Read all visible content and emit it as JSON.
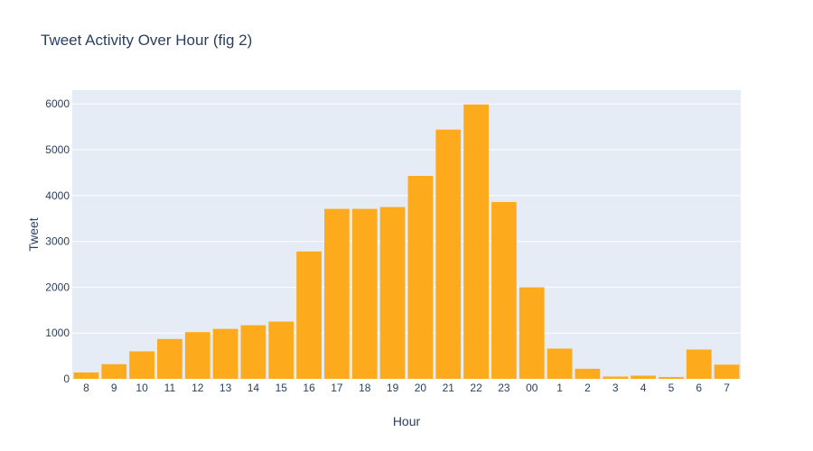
{
  "chart_data": {
    "type": "bar",
    "title": "Tweet Activity Over Hour (fig 2)",
    "xlabel": "Hour",
    "ylabel": "Tweet",
    "categories": [
      "8",
      "9",
      "10",
      "11",
      "12",
      "13",
      "14",
      "15",
      "16",
      "17",
      "18",
      "19",
      "20",
      "21",
      "22",
      "23",
      "00",
      "1",
      "2",
      "3",
      "4",
      "5",
      "6",
      "7"
    ],
    "values": [
      140,
      320,
      600,
      870,
      1020,
      1090,
      1170,
      1250,
      2780,
      3710,
      3710,
      3750,
      4430,
      5440,
      5990,
      3860,
      2000,
      660,
      220,
      50,
      70,
      40,
      640,
      310
    ],
    "ylim": [
      0,
      6300
    ],
    "yticks": [
      0,
      1000,
      2000,
      3000,
      4000,
      5000,
      6000
    ],
    "grid": true,
    "legend": "none",
    "colors": {
      "bar": "#fdab1d",
      "plot_bg": "#e5ecf6",
      "grid": "#ffffff",
      "text": "#2a3f5f"
    }
  }
}
